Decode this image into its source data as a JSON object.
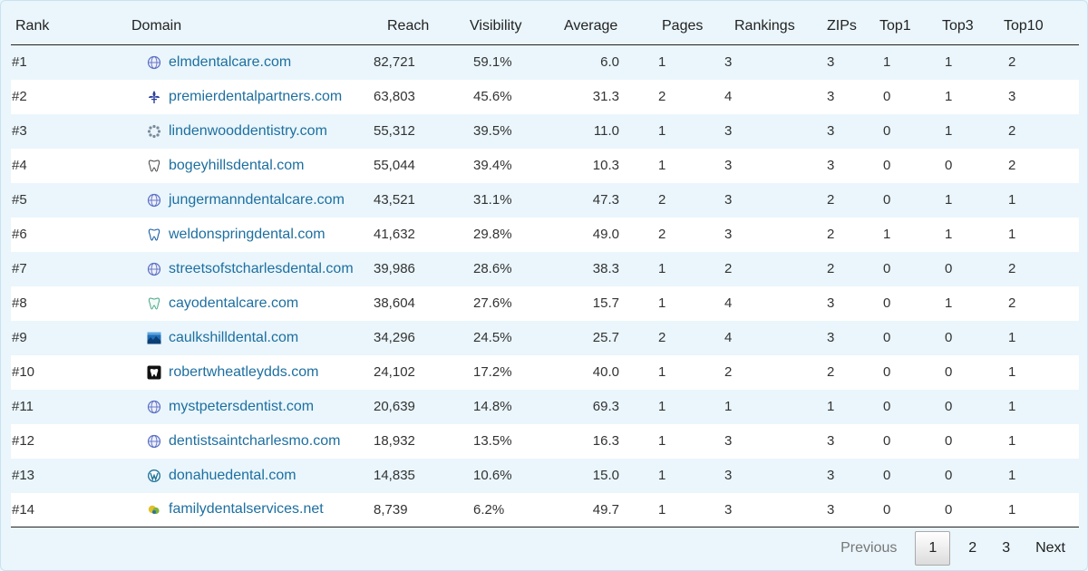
{
  "table": {
    "headers": {
      "rank": "Rank",
      "domain": "Domain",
      "reach": "Reach",
      "visibility": "Visibility",
      "average": "Average",
      "pages": "Pages",
      "rankings": "Rankings",
      "zips": "ZIPs",
      "top1": "Top1",
      "top3": "Top3",
      "top10": "Top10"
    },
    "rows": [
      {
        "rank": "#1",
        "icon": "globe-icon",
        "domain": "elmdentalcare.com",
        "reach": "82,721",
        "visibility": "59.1%",
        "average": "6.0",
        "pages": "1",
        "rankings": "3",
        "zips": "3",
        "top1": "1",
        "top3": "1",
        "top10": "2"
      },
      {
        "rank": "#2",
        "icon": "fleur-icon",
        "domain": "premierdentalpartners.com",
        "reach": "63,803",
        "visibility": "45.6%",
        "average": "31.3",
        "pages": "2",
        "rankings": "4",
        "zips": "3",
        "top1": "0",
        "top3": "1",
        "top10": "3"
      },
      {
        "rank": "#3",
        "icon": "spinner-icon",
        "domain": "lindenwooddentistry.com",
        "reach": "55,312",
        "visibility": "39.5%",
        "average": "11.0",
        "pages": "1",
        "rankings": "3",
        "zips": "3",
        "top1": "0",
        "top3": "1",
        "top10": "2"
      },
      {
        "rank": "#4",
        "icon": "tooth-icon",
        "domain": "bogeyhillsdental.com",
        "reach": "55,044",
        "visibility": "39.4%",
        "average": "10.3",
        "pages": "1",
        "rankings": "3",
        "zips": "3",
        "top1": "0",
        "top3": "0",
        "top10": "2"
      },
      {
        "rank": "#5",
        "icon": "globe-icon",
        "domain": "jungermanndentalcare.com",
        "reach": "43,521",
        "visibility": "31.1%",
        "average": "47.3",
        "pages": "2",
        "rankings": "3",
        "zips": "2",
        "top1": "0",
        "top3": "1",
        "top10": "1"
      },
      {
        "rank": "#6",
        "icon": "tooth-blue-icon",
        "domain": "weldonspringdental.com",
        "reach": "41,632",
        "visibility": "29.8%",
        "average": "49.0",
        "pages": "2",
        "rankings": "3",
        "zips": "2",
        "top1": "1",
        "top3": "1",
        "top10": "1"
      },
      {
        "rank": "#7",
        "icon": "globe-icon",
        "domain": "streetsofstcharlesdental.com",
        "reach": "39,986",
        "visibility": "28.6%",
        "average": "38.3",
        "pages": "1",
        "rankings": "2",
        "zips": "2",
        "top1": "0",
        "top3": "0",
        "top10": "2"
      },
      {
        "rank": "#8",
        "icon": "tooth-green-icon",
        "domain": "cayodentalcare.com",
        "reach": "38,604",
        "visibility": "27.6%",
        "average": "15.7",
        "pages": "1",
        "rankings": "4",
        "zips": "3",
        "top1": "0",
        "top3": "1",
        "top10": "2"
      },
      {
        "rank": "#9",
        "icon": "landscape-icon",
        "domain": "caulkshilldental.com",
        "reach": "34,296",
        "visibility": "24.5%",
        "average": "25.7",
        "pages": "2",
        "rankings": "4",
        "zips": "3",
        "top1": "0",
        "top3": "0",
        "top10": "1"
      },
      {
        "rank": "#10",
        "icon": "tooth-black-icon",
        "domain": "robertwheatleydds.com",
        "reach": "24,102",
        "visibility": "17.2%",
        "average": "40.0",
        "pages": "1",
        "rankings": "2",
        "zips": "2",
        "top1": "0",
        "top3": "0",
        "top10": "1"
      },
      {
        "rank": "#11",
        "icon": "globe-icon",
        "domain": "mystpetersdentist.com",
        "reach": "20,639",
        "visibility": "14.8%",
        "average": "69.3",
        "pages": "1",
        "rankings": "1",
        "zips": "1",
        "top1": "0",
        "top3": "0",
        "top10": "1"
      },
      {
        "rank": "#12",
        "icon": "globe-icon",
        "domain": "dentistsaintcharlesmo.com",
        "reach": "18,932",
        "visibility": "13.5%",
        "average": "16.3",
        "pages": "1",
        "rankings": "3",
        "zips": "3",
        "top1": "0",
        "top3": "0",
        "top10": "1"
      },
      {
        "rank": "#13",
        "icon": "wordpress-icon",
        "domain": "donahuedental.com",
        "reach": "14,835",
        "visibility": "10.6%",
        "average": "15.0",
        "pages": "1",
        "rankings": "3",
        "zips": "3",
        "top1": "0",
        "top3": "0",
        "top10": "1"
      },
      {
        "rank": "#14",
        "icon": "family-icon",
        "domain": "familydentalservices.net",
        "reach": "8,739",
        "visibility": "6.2%",
        "average": "49.7",
        "pages": "1",
        "rankings": "3",
        "zips": "3",
        "top1": "0",
        "top3": "0",
        "top10": "1"
      }
    ]
  },
  "pagination": {
    "previous": "Previous",
    "pages": [
      "1",
      "2",
      "3"
    ],
    "current": "1",
    "next": "Next"
  },
  "colors": {
    "link": "#1d6fa0",
    "row_alt": "#eaf6fc",
    "row": "#ffffff"
  }
}
